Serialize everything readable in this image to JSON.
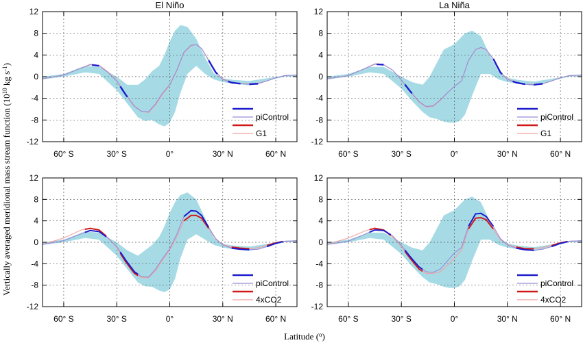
{
  "figure": {
    "ylabel_parts": [
      "Vertically averaged meridional mass stream function (10",
      "10",
      " kg s",
      "-1",
      ")"
    ],
    "xlabel_parts": [
      "Latitude (",
      "o",
      ")"
    ]
  },
  "colors": {
    "band": "#a6dbe6",
    "piControl_dark": "#1c1ccc",
    "piControl_light": "#9a8ad6",
    "exp_dark": "#d01818",
    "exp_light": "#f2a0a0"
  },
  "chart_data": [
    {
      "type": "line",
      "title": "El Niño",
      "xlim": [
        -72,
        72
      ],
      "ylim": [
        -12,
        12
      ],
      "yticks": [
        12,
        8,
        4,
        0,
        -4,
        -8,
        -12
      ],
      "xticks": [
        {
          "value": -60,
          "label": "60° S"
        },
        {
          "value": -30,
          "label": "30° S"
        },
        {
          "value": 0,
          "label": "0°"
        },
        {
          "value": 30,
          "label": "30° N"
        },
        {
          "value": 60,
          "label": "60° N"
        }
      ],
      "grid": true,
      "legend": {
        "position": "bottom-right",
        "entries": [
          "piControl",
          "G1"
        ]
      },
      "band": {
        "x": [
          -72,
          -60,
          -48,
          -40,
          -30,
          -24,
          -18,
          -14,
          -10,
          -6,
          -3,
          0,
          3,
          6,
          10,
          15,
          20,
          25,
          30,
          36,
          45,
          55,
          65,
          72
        ],
        "upper": [
          0,
          0.5,
          2.0,
          1.8,
          0,
          -1.5,
          -1.5,
          -0.5,
          1.0,
          2.0,
          4.0,
          6.5,
          8.5,
          9.5,
          9.2,
          7.0,
          3.5,
          0.6,
          -0.3,
          -0.6,
          -0.8,
          -0.3,
          0.2,
          0.3
        ],
        "lower": [
          -0.5,
          0,
          0.8,
          0.5,
          -2.5,
          -5.0,
          -7.5,
          -8.2,
          -8.0,
          -8.8,
          -9.2,
          -8.5,
          -6.5,
          -3.0,
          0.5,
          2.0,
          0.5,
          -0.5,
          -1.0,
          -1.3,
          -1.6,
          -0.8,
          0,
          0
        ]
      },
      "series": [
        {
          "name": "piControl",
          "x": [
            -72,
            -60,
            -50,
            -45,
            -40,
            -35,
            -30,
            -25,
            -20,
            -16,
            -12,
            -8,
            -4,
            0,
            4,
            8,
            12,
            15,
            18,
            22,
            26,
            30,
            35,
            40,
            45,
            50,
            55,
            60,
            65,
            72
          ],
          "y": [
            -0.4,
            0.3,
            1.6,
            2.2,
            2.0,
            0.8,
            -0.8,
            -3.3,
            -5.5,
            -6.4,
            -6.5,
            -5.0,
            -3.0,
            -1.5,
            1.2,
            4.5,
            5.8,
            5.9,
            5.2,
            3.0,
            0.8,
            -0.5,
            -1.1,
            -1.3,
            -1.4,
            -1.3,
            -0.8,
            -0.2,
            0.2,
            0.3
          ]
        },
        {
          "name": "G1",
          "x": [
            -72,
            -60,
            -50,
            -45,
            -40,
            -35,
            -30,
            -25,
            -20,
            -16,
            -12,
            -8,
            -4,
            0,
            4,
            8,
            12,
            15,
            18,
            22,
            26,
            30,
            35,
            40,
            45,
            50,
            55,
            60,
            65,
            72
          ],
          "y": [
            -0.4,
            0.3,
            1.6,
            2.3,
            2.1,
            0.9,
            -0.7,
            -3.2,
            -5.4,
            -6.4,
            -6.6,
            -5.2,
            -3.2,
            -1.6,
            1.1,
            4.4,
            5.7,
            5.9,
            5.2,
            3.1,
            0.9,
            -0.4,
            -1.0,
            -1.3,
            -1.3,
            -1.2,
            -0.8,
            -0.2,
            0.2,
            0.3
          ]
        }
      ]
    },
    {
      "type": "line",
      "title": "La Niña",
      "xlim": [
        -72,
        72
      ],
      "ylim": [
        -12,
        12
      ],
      "yticks": [
        12,
        8,
        4,
        0,
        -4,
        -8,
        -12
      ],
      "xticks": [
        {
          "value": -60,
          "label": "60° S"
        },
        {
          "value": -30,
          "label": "30° S"
        },
        {
          "value": 0,
          "label": "0°"
        },
        {
          "value": 30,
          "label": "30° N"
        },
        {
          "value": 60,
          "label": "60° N"
        }
      ],
      "grid": true,
      "legend": {
        "position": "bottom-right",
        "entries": [
          "piControl",
          "G1"
        ]
      },
      "band": {
        "x": [
          -72,
          -60,
          -48,
          -40,
          -30,
          -24,
          -18,
          -14,
          -10,
          -6,
          -3,
          0,
          3,
          6,
          10,
          15,
          20,
          25,
          30,
          36,
          45,
          55,
          65,
          72
        ],
        "upper": [
          0,
          0.5,
          1.8,
          1.8,
          0,
          -1.0,
          -1.5,
          0,
          2.5,
          5.0,
          5.5,
          6.0,
          7.0,
          8.0,
          8.5,
          7.5,
          4.0,
          1.0,
          -0.2,
          -0.6,
          -0.9,
          -0.4,
          0.2,
          0.3
        ],
        "lower": [
          -0.5,
          0,
          0.8,
          0.5,
          -2.2,
          -4.5,
          -6.5,
          -7.5,
          -7.8,
          -8.3,
          -8.5,
          -8.5,
          -8.2,
          -7.0,
          -3.5,
          0.5,
          0.5,
          -0.5,
          -1.0,
          -1.3,
          -1.7,
          -0.8,
          0,
          0
        ]
      },
      "series": [
        {
          "name": "piControl",
          "x": [
            -72,
            -60,
            -50,
            -45,
            -40,
            -35,
            -30,
            -25,
            -20,
            -16,
            -12,
            -8,
            -4,
            0,
            4,
            8,
            12,
            15,
            18,
            22,
            26,
            30,
            35,
            40,
            45,
            50,
            55,
            60,
            65,
            72
          ],
          "y": [
            -0.4,
            0.2,
            1.6,
            2.3,
            2.2,
            1.2,
            -0.6,
            -2.7,
            -4.6,
            -5.5,
            -5.4,
            -4.3,
            -3.0,
            -1.8,
            -0.8,
            3.0,
            5.0,
            5.4,
            5.0,
            3.3,
            0.8,
            -0.5,
            -1.1,
            -1.4,
            -1.5,
            -1.3,
            -0.8,
            -0.2,
            0.2,
            0.3
          ]
        },
        {
          "name": "G1",
          "x": [
            -72,
            -60,
            -50,
            -45,
            -40,
            -35,
            -30,
            -25,
            -20,
            -16,
            -12,
            -8,
            -4,
            0,
            4,
            8,
            12,
            15,
            18,
            22,
            26,
            30,
            35,
            40,
            45,
            50,
            55,
            60,
            65,
            72
          ],
          "y": [
            -0.4,
            0.2,
            1.6,
            2.4,
            2.2,
            1.2,
            -0.6,
            -2.8,
            -4.7,
            -5.6,
            -5.5,
            -4.4,
            -3.0,
            -1.8,
            -0.8,
            3.0,
            5.0,
            5.3,
            5.0,
            3.2,
            0.8,
            -0.4,
            -1.0,
            -1.4,
            -1.4,
            -1.3,
            -0.8,
            -0.2,
            0.2,
            0.3
          ]
        }
      ]
    },
    {
      "type": "line",
      "title": "",
      "xlim": [
        -72,
        72
      ],
      "ylim": [
        -12,
        12
      ],
      "yticks": [
        12,
        8,
        4,
        0,
        -4,
        -8,
        -12
      ],
      "xticks": [
        {
          "value": -60,
          "label": "60° S"
        },
        {
          "value": -30,
          "label": "30° S"
        },
        {
          "value": 0,
          "label": "0°"
        },
        {
          "value": 30,
          "label": "30° N"
        },
        {
          "value": 60,
          "label": "60° N"
        }
      ],
      "grid": true,
      "legend": {
        "position": "bottom-right",
        "entries": [
          "piControl",
          "4xCO2"
        ]
      },
      "band": {
        "x": [
          -72,
          -60,
          -48,
          -40,
          -30,
          -24,
          -18,
          -14,
          -10,
          -6,
          -3,
          0,
          3,
          6,
          10,
          15,
          20,
          25,
          30,
          36,
          45,
          55,
          65,
          72
        ],
        "upper": [
          0,
          0.5,
          2.0,
          1.8,
          0,
          -1.5,
          -2.5,
          -1.5,
          -0.5,
          1.0,
          3.0,
          5.5,
          7.5,
          8.8,
          9.3,
          8.0,
          4.5,
          0.8,
          -0.3,
          -0.6,
          -0.8,
          -0.3,
          0.2,
          0.3
        ],
        "lower": [
          -0.5,
          0,
          0.8,
          0.5,
          -2.5,
          -5.0,
          -7.5,
          -8.2,
          -8.3,
          -9.0,
          -9.3,
          -8.8,
          -6.8,
          -3.0,
          0.5,
          1.5,
          0.5,
          -0.5,
          -1.0,
          -1.3,
          -1.6,
          -0.8,
          0,
          0
        ]
      },
      "series": [
        {
          "name": "piControl",
          "x": [
            -72,
            -60,
            -50,
            -45,
            -40,
            -35,
            -30,
            -25,
            -20,
            -16,
            -12,
            -8,
            -4,
            0,
            4,
            8,
            12,
            15,
            18,
            22,
            26,
            30,
            35,
            40,
            45,
            50,
            55,
            60,
            65,
            72
          ],
          "y": [
            -0.4,
            0.3,
            1.6,
            2.2,
            2.0,
            0.8,
            -0.8,
            -3.3,
            -5.5,
            -6.4,
            -6.5,
            -5.0,
            -3.0,
            -1.2,
            1.5,
            4.8,
            5.9,
            5.8,
            5.0,
            2.8,
            0.7,
            -0.5,
            -1.1,
            -1.3,
            -1.4,
            -1.3,
            -0.8,
            -0.2,
            0.2,
            0.3
          ]
        },
        {
          "name": "4xCO2",
          "x": [
            -72,
            -60,
            -50,
            -45,
            -40,
            -35,
            -30,
            -25,
            -20,
            -16,
            -12,
            -8,
            -4,
            0,
            4,
            8,
            12,
            15,
            18,
            22,
            26,
            30,
            35,
            40,
            45,
            50,
            55,
            60,
            65,
            72
          ],
          "y": [
            -0.4,
            0.8,
            2.3,
            2.6,
            2.3,
            0.9,
            -1.0,
            -3.6,
            -5.8,
            -6.6,
            -6.6,
            -5.3,
            -3.3,
            -1.4,
            1.0,
            4.0,
            5.0,
            5.0,
            4.5,
            2.6,
            0.6,
            -0.4,
            -0.9,
            -1.1,
            -1.2,
            -1.0,
            -0.6,
            -0.1,
            0.2,
            0.3
          ]
        }
      ]
    },
    {
      "type": "line",
      "title": "",
      "xlim": [
        -72,
        72
      ],
      "ylim": [
        -12,
        12
      ],
      "yticks": [
        12,
        8,
        4,
        0,
        -4,
        -8,
        -12
      ],
      "xticks": [
        {
          "value": -60,
          "label": "60° S"
        },
        {
          "value": -30,
          "label": "30° S"
        },
        {
          "value": 0,
          "label": "0°"
        },
        {
          "value": 30,
          "label": "30° N"
        },
        {
          "value": 60,
          "label": "60° N"
        }
      ],
      "grid": true,
      "legend": {
        "position": "bottom-right",
        "entries": [
          "piControl",
          "4xCO2"
        ]
      },
      "band": {
        "x": [
          -72,
          -60,
          -48,
          -40,
          -30,
          -24,
          -18,
          -14,
          -10,
          -6,
          -3,
          0,
          3,
          6,
          10,
          15,
          20,
          25,
          30,
          36,
          45,
          55,
          65,
          72
        ],
        "upper": [
          0,
          0.5,
          1.8,
          1.8,
          0,
          -1.0,
          -1.5,
          0,
          2.5,
          5.0,
          5.5,
          6.0,
          7.0,
          8.0,
          8.5,
          7.5,
          4.0,
          1.0,
          -0.2,
          -0.6,
          -0.9,
          -0.4,
          0.2,
          0.3
        ],
        "lower": [
          -0.5,
          0,
          0.8,
          0.5,
          -2.2,
          -4.5,
          -6.5,
          -7.5,
          -7.8,
          -8.3,
          -8.5,
          -8.5,
          -8.2,
          -7.0,
          -3.5,
          0.5,
          0.5,
          -0.5,
          -1.0,
          -1.3,
          -1.7,
          -0.8,
          0,
          0
        ]
      },
      "series": [
        {
          "name": "piControl",
          "x": [
            -72,
            -60,
            -50,
            -45,
            -40,
            -35,
            -30,
            -25,
            -20,
            -16,
            -12,
            -8,
            -4,
            0,
            4,
            8,
            12,
            15,
            18,
            22,
            26,
            30,
            35,
            40,
            45,
            50,
            55,
            60,
            65,
            72
          ],
          "y": [
            -0.4,
            0.2,
            1.6,
            2.3,
            2.2,
            1.2,
            -0.6,
            -2.7,
            -4.6,
            -5.5,
            -5.6,
            -5.0,
            -3.5,
            -2.0,
            -1.0,
            3.0,
            5.3,
            5.4,
            4.8,
            3.0,
            0.7,
            -0.5,
            -1.1,
            -1.4,
            -1.5,
            -1.3,
            -0.8,
            -0.2,
            0.2,
            0.3
          ]
        },
        {
          "name": "4xCO2",
          "x": [
            -72,
            -60,
            -50,
            -45,
            -40,
            -35,
            -30,
            -25,
            -20,
            -16,
            -12,
            -8,
            -4,
            0,
            4,
            8,
            12,
            15,
            18,
            22,
            26,
            30,
            35,
            40,
            45,
            50,
            55,
            60,
            65,
            72
          ],
          "y": [
            -0.4,
            0.8,
            2.2,
            2.6,
            2.3,
            1.0,
            -0.8,
            -3.0,
            -5.0,
            -5.8,
            -5.8,
            -5.5,
            -4.3,
            -3.0,
            -1.5,
            2.5,
            4.5,
            4.6,
            4.2,
            2.5,
            0.5,
            -0.4,
            -0.9,
            -1.2,
            -1.2,
            -1.0,
            -0.6,
            -0.1,
            0.2,
            0.3
          ]
        }
      ]
    }
  ]
}
